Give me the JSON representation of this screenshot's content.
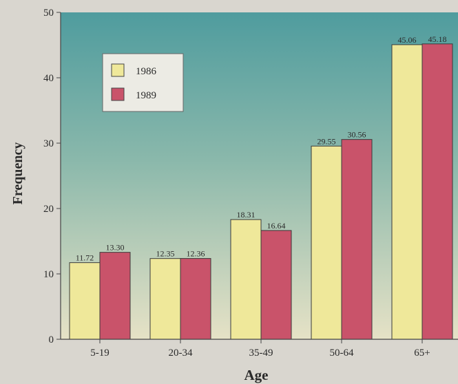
{
  "chart_data": {
    "type": "bar",
    "title": "",
    "xlabel": "Age",
    "ylabel": "Frequency",
    "categories": [
      "5-19",
      "20-34",
      "35-49",
      "50-64",
      "65+"
    ],
    "series": [
      {
        "name": "1986",
        "values": [
          11.72,
          12.35,
          18.31,
          29.55,
          45.06
        ],
        "labels": [
          "11.72",
          "12.35",
          "18.31",
          "29.55",
          "45.06"
        ],
        "color": "#efe89a"
      },
      {
        "name": "1989",
        "values": [
          13.3,
          12.36,
          16.64,
          30.56,
          45.18
        ],
        "labels": [
          "13.30",
          "12.36",
          "16.64",
          "30.56",
          "45.18"
        ],
        "color": "#c9536a"
      }
    ],
    "ylim": [
      0,
      50
    ],
    "yticks": [
      0,
      10,
      20,
      30,
      40,
      50
    ],
    "grid": false,
    "legend_position": "top-left",
    "background_gradient": [
      "#4f9c9e",
      "#e6e2c6"
    ]
  }
}
